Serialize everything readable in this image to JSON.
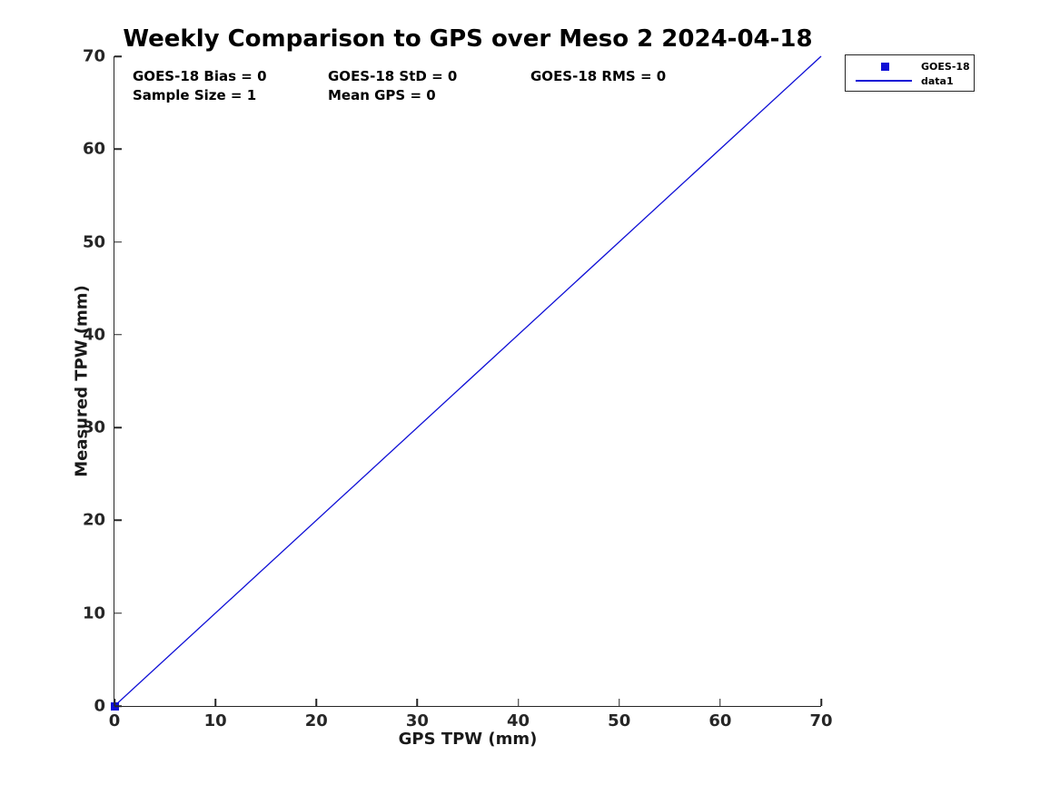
{
  "colors": {
    "series_blue": "#0f0fd6",
    "axis": "#262626",
    "text": "#000000",
    "background": "#ffffff"
  },
  "chart_data": {
    "type": "scatter",
    "title": "Weekly Comparison to GPS over Meso 2 2024-04-18",
    "xlabel": "GPS TPW (mm)",
    "ylabel": "Measured TPW (mm)",
    "xlim": [
      0,
      70
    ],
    "ylim": [
      0,
      70
    ],
    "xticks": [
      0,
      10,
      20,
      30,
      40,
      50,
      60,
      70
    ],
    "yticks": [
      0,
      10,
      20,
      30,
      40,
      50,
      60,
      70
    ],
    "grid": false,
    "legend_position": "outside-top-right",
    "series": [
      {
        "name": "GOES-18",
        "type": "scatter",
        "marker": "square",
        "color": "#0f0fd6",
        "points": [
          [
            0,
            0
          ]
        ]
      },
      {
        "name": "data1",
        "type": "line",
        "color": "#0f0fd6",
        "points": [
          [
            0,
            0
          ],
          [
            70,
            70
          ]
        ]
      }
    ],
    "annotations": [
      "GOES-18 Bias = 0",
      "GOES-18 StD = 0",
      "GOES-18 RMS = 0",
      "Sample Size = 1",
      "Mean GPS = 0"
    ]
  }
}
